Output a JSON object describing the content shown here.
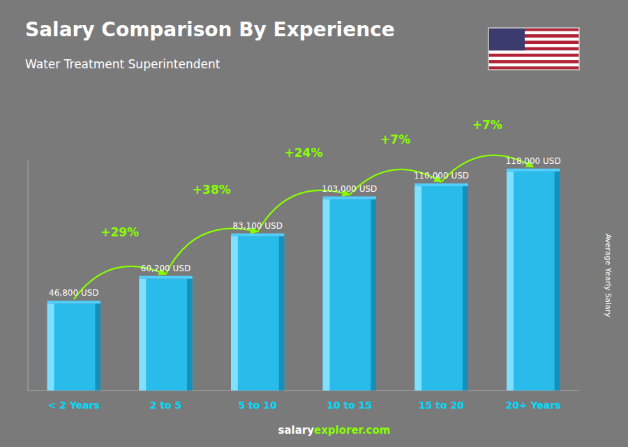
{
  "chart_data": {
    "type": "bar",
    "title": "Salary Comparison By Experience",
    "subtitle": "Water Treatment Superintendent",
    "y_label": "Average Yearly Salary",
    "categories": [
      "< 2 Years",
      "2 to 5",
      "5 to 10",
      "10 to 15",
      "15 to 20",
      "20+ Years"
    ],
    "values": [
      46800,
      60200,
      83100,
      103000,
      110000,
      118000
    ],
    "value_labels": [
      "46,800 USD",
      "60,200 USD",
      "83,100 USD",
      "103,000 USD",
      "110,000 USD",
      "118,000 USD"
    ],
    "data_labels": true,
    "annotations": [
      "+29%",
      "+38%",
      "+24%",
      "+7%",
      "+7%"
    ],
    "footer": [
      "salary",
      "explorer.com"
    ],
    "color": "#29BCEB",
    "ylim": [
      0,
      123900
    ],
    "grid": false,
    "tick_labels": "x"
  }
}
